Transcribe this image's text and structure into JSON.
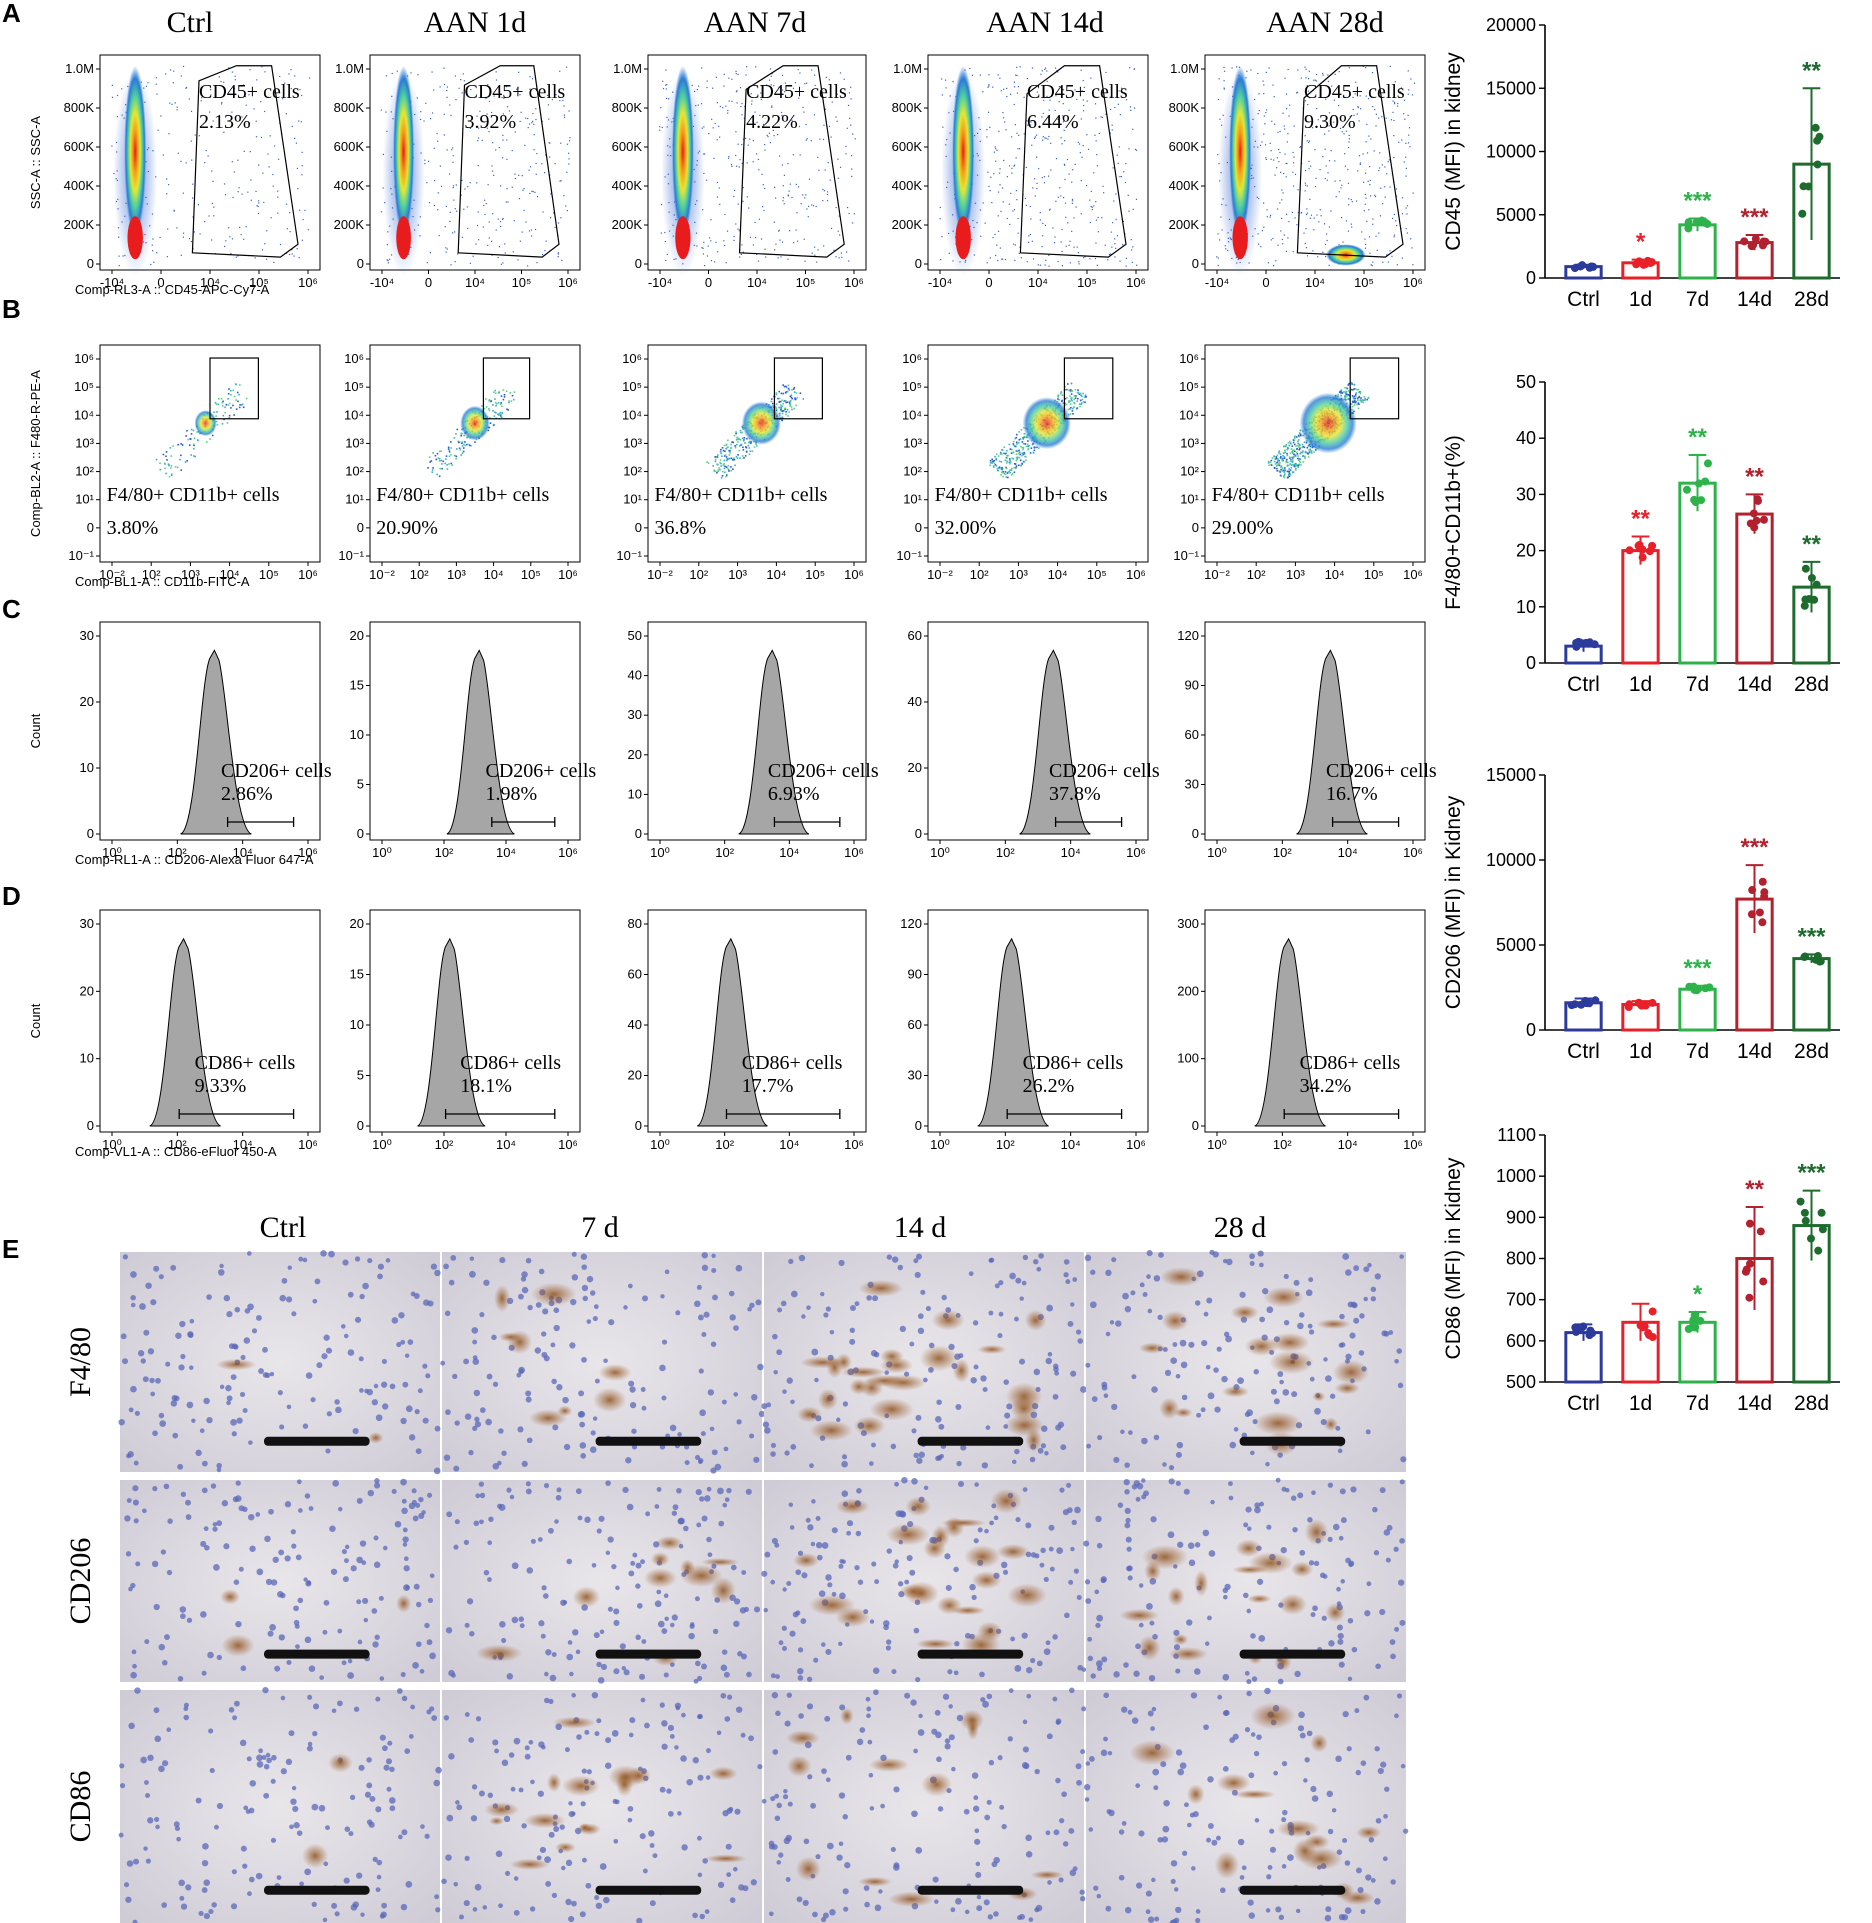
{
  "panel_letters": [
    "A",
    "B",
    "C",
    "D",
    "E"
  ],
  "flow_columns": [
    "Ctrl",
    "AAN 1d",
    "AAN 7d",
    "AAN 14d",
    "AAN 28d"
  ],
  "ihc": {
    "columns": [
      "Ctrl",
      "7 d",
      "14 d",
      "28 d"
    ],
    "rows": [
      "F4/80",
      "CD206",
      "CD86"
    ]
  },
  "flow_rows": [
    {
      "id": "A",
      "type": "density",
      "ylabel": "SSC-A :: SSC-A",
      "xlabel": "Comp-RL3-A :: CD45-APC-Cy7-A",
      "gate_name": "CD45+ cells",
      "gate_values": [
        "2.13%",
        "3.92%",
        "4.22%",
        "6.44%",
        "9.30%"
      ],
      "yticks": [
        "0",
        "200K",
        "400K",
        "600K",
        "800K",
        "1.0M"
      ],
      "xticks": [
        "-10⁴",
        "0",
        "10⁴",
        "10⁵",
        "10⁶"
      ]
    },
    {
      "id": "B",
      "type": "scatter",
      "ylabel": "Comp-BL2-A :: F480-R-PE-A",
      "xlabel": "Comp-BL1-A :: CD11b-FITC-A",
      "gate_name": "F4/80+ CD11b+ cells",
      "gate_values": [
        "3.80%",
        "20.90%",
        "36.8%",
        "32.00%",
        "29.00%"
      ],
      "yticks": [
        "10⁻¹",
        "0",
        "10¹",
        "10²",
        "10³",
        "10⁴",
        "10⁵",
        "10⁶"
      ],
      "xticks": [
        "10⁻²",
        "10²",
        "10³",
        "10⁴",
        "10⁵",
        "10⁶"
      ]
    },
    {
      "id": "C",
      "type": "histogram",
      "ylabel": "Count",
      "xlabel": "Comp-RL1-A :: CD206-Alexa Fluor   647-A",
      "gate_name": "CD206+ cells",
      "gate_values": [
        "2.86%",
        "1.98%",
        "6.93%",
        "37.8%",
        "16.7%"
      ],
      "ymax": [
        "30",
        "20",
        "50",
        "60",
        "120"
      ],
      "yticks": [
        [
          "0",
          "10",
          "20",
          "30"
        ],
        [
          "0",
          "5",
          "10",
          "15",
          "20"
        ],
        [
          "0",
          "10",
          "20",
          "30",
          "40",
          "50"
        ],
        [
          "0",
          "20",
          "40",
          "60"
        ],
        [
          "0",
          "30",
          "60",
          "90",
          "120"
        ]
      ],
      "xticks": [
        "10⁰",
        "10²",
        "10⁴",
        "10⁶"
      ]
    },
    {
      "id": "D",
      "type": "histogram",
      "ylabel": "Count",
      "xlabel": "Comp-VL1-A :: CD86-eFluor   450-A",
      "gate_name": "CD86+ cells",
      "gate_values": [
        "9.33%",
        "18.1%",
        "17.7%",
        "26.2%",
        "34.2%"
      ],
      "ymax": [
        "30",
        "20",
        "80",
        "120",
        "300"
      ],
      "yticks": [
        [
          "0",
          "10",
          "20",
          "30"
        ],
        [
          "0",
          "5",
          "10",
          "15",
          "20"
        ],
        [
          "0",
          "20",
          "40",
          "60",
          "80"
        ],
        [
          "0",
          "30",
          "60",
          "90",
          "120"
        ],
        [
          "0",
          "100",
          "200",
          "300"
        ]
      ],
      "xticks": [
        "10⁰",
        "10²",
        "10⁴",
        "10⁶"
      ]
    }
  ],
  "colors": {
    "Ctrl": "#2b3a9b",
    "1d": "#e8202a",
    "7d": "#2db34a",
    "14d": "#b3202e",
    "28d": "#1e6b2e",
    "histogram_fill": "#a6a6a6"
  },
  "chart_data": [
    {
      "type": "bar",
      "ylabel": "CD45 (MFI) in kidney",
      "categories": [
        "Ctrl",
        "1d",
        "7d",
        "14d",
        "28d"
      ],
      "values": [
        900,
        1200,
        4200,
        2800,
        9000
      ],
      "errors": [
        150,
        250,
        500,
        600,
        6000
      ],
      "significance": [
        "",
        "*",
        "***",
        "***",
        "**"
      ],
      "ylim": [
        0,
        20000
      ],
      "yticks": [
        "0",
        "5000",
        "10000",
        "15000",
        "20000"
      ]
    },
    {
      "type": "bar",
      "ylabel": "F4/80+CD11b+(%)",
      "categories": [
        "Ctrl",
        "1d",
        "7d",
        "14d",
        "28d"
      ],
      "values": [
        3,
        20,
        32,
        26.5,
        13.5
      ],
      "errors": [
        1,
        2.5,
        5,
        3.5,
        4.5
      ],
      "significance": [
        "",
        "**",
        "**",
        "**",
        "**"
      ],
      "ylim": [
        0,
        50
      ],
      "yticks": [
        "0",
        "10",
        "20",
        "30",
        "40",
        "50"
      ]
    },
    {
      "type": "bar",
      "ylabel": "CD206 (MFI) in Kidney",
      "categories": [
        "Ctrl",
        "1d",
        "7d",
        "14d",
        "28d"
      ],
      "values": [
        1600,
        1500,
        2400,
        7700,
        4200
      ],
      "errors": [
        250,
        200,
        200,
        2000,
        250
      ],
      "significance": [
        "",
        "",
        "***",
        "***",
        "***"
      ],
      "ylim": [
        0,
        15000
      ],
      "yticks": [
        "0",
        "5000",
        "10000",
        "15000"
      ]
    },
    {
      "type": "bar",
      "ylabel": "CD86 (MFI) in Kidney",
      "categories": [
        "Ctrl",
        "1d",
        "7d",
        "14d",
        "28d"
      ],
      "values": [
        620,
        645,
        645,
        800,
        880
      ],
      "errors": [
        20,
        45,
        25,
        125,
        85
      ],
      "significance": [
        "",
        "",
        "*",
        "**",
        "***"
      ],
      "ylim": [
        500,
        1100
      ],
      "yticks": [
        "500",
        "600",
        "700",
        "800",
        "900",
        "1000",
        "1100"
      ]
    }
  ]
}
